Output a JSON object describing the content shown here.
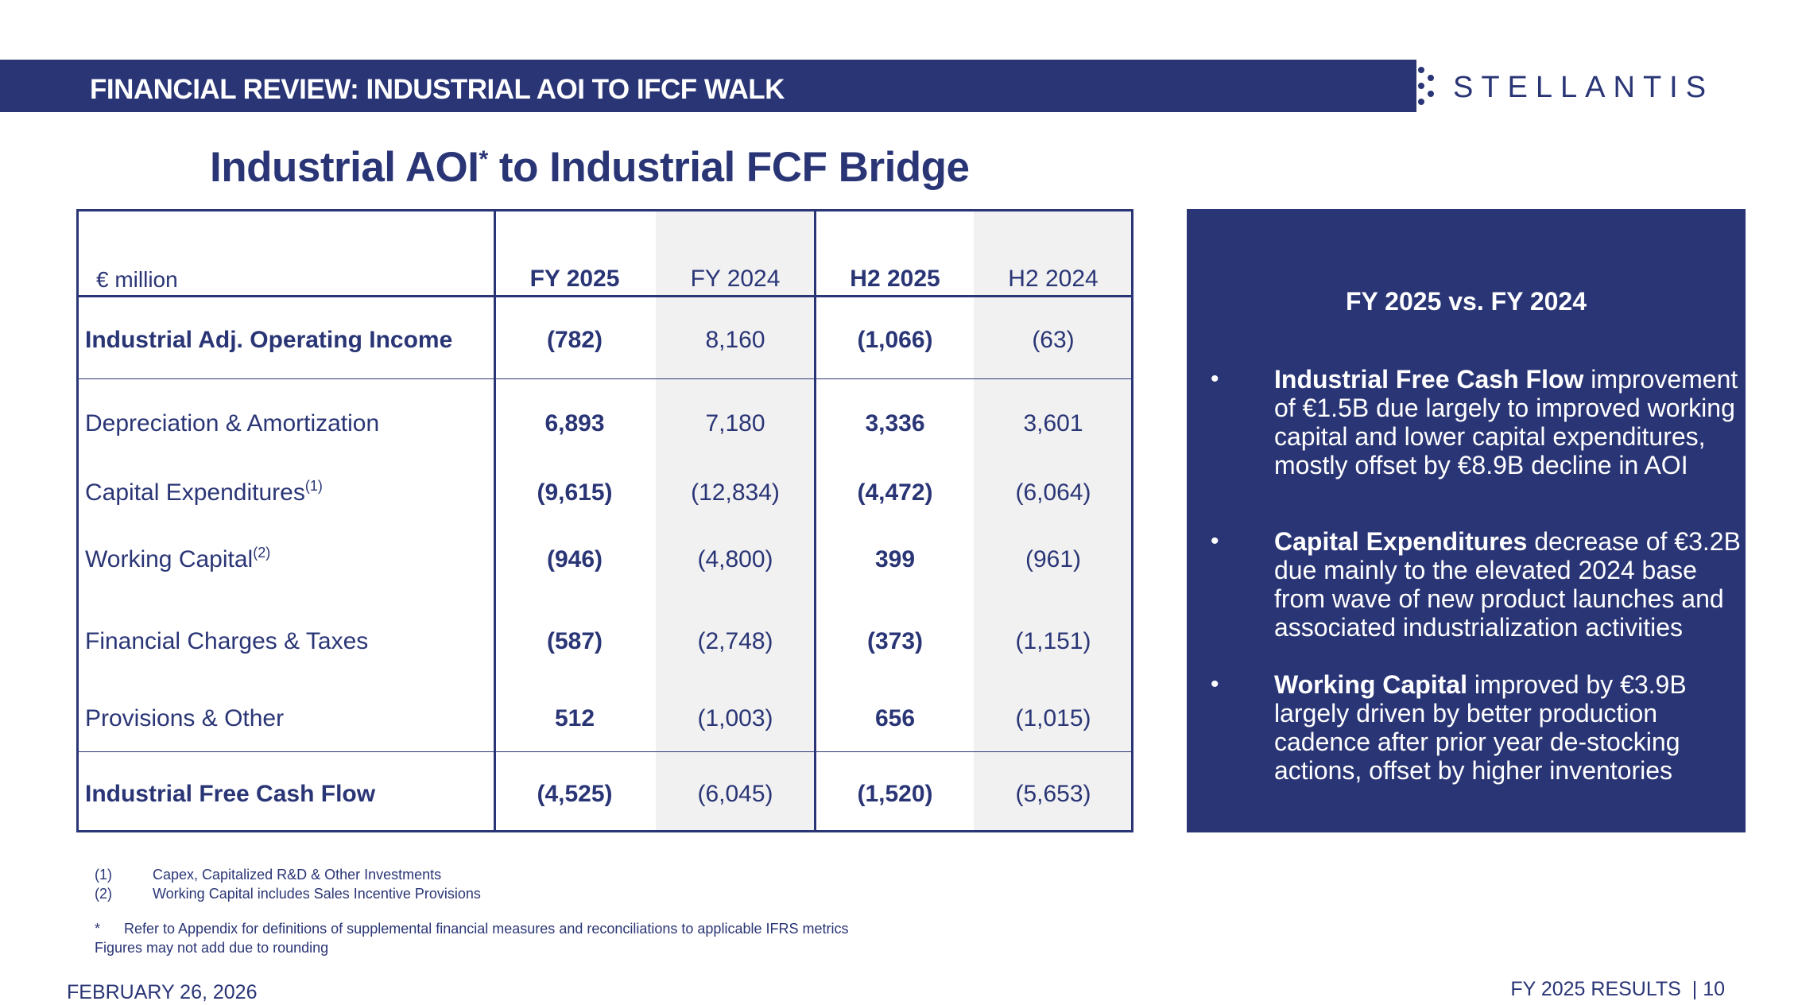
{
  "header": {
    "title": "FINANCIAL REVIEW: INDUSTRIAL AOI TO IFCF WALK",
    "logo_text": "STELLANTIS"
  },
  "main_title": {
    "text": "Industrial AOI",
    "sup": "*",
    "rest": " to Industrial FCF Bridge"
  },
  "table": {
    "unit_label": "€ million",
    "columns": [
      "FY 2025",
      "FY 2024",
      "H2 2025",
      "H2 2024"
    ],
    "rows": [
      {
        "label": "Industrial Adj. Operating Income",
        "sup": "",
        "values": [
          "(782)",
          "8,160",
          "(1,066)",
          "(63)"
        ]
      },
      {
        "label": "Depreciation & Amortization",
        "sup": "",
        "values": [
          "6,893",
          "7,180",
          "3,336",
          "3,601"
        ]
      },
      {
        "label": "Capital Expenditures",
        "sup": "(1)",
        "values": [
          "(9,615)",
          "(12,834)",
          "(4,472)",
          "(6,064)"
        ]
      },
      {
        "label": "Working Capital",
        "sup": "(2)",
        "values": [
          "(946)",
          "(4,800)",
          "399",
          "(961)"
        ]
      },
      {
        "label": "Financial Charges & Taxes",
        "sup": "",
        "values": [
          "(587)",
          "(2,748)",
          "(373)",
          "(1,151)"
        ]
      },
      {
        "label": "Provisions & Other",
        "sup": "",
        "values": [
          "512",
          "(1,003)",
          "656",
          "(1,015)"
        ]
      },
      {
        "label": "Industrial Free Cash Flow",
        "sup": "",
        "values": [
          "(4,525)",
          "(6,045)",
          "(1,520)",
          "(5,653)"
        ]
      }
    ]
  },
  "panel": {
    "title": "FY 2025 vs. FY 2024",
    "bullets": [
      {
        "bold": "Industrial Free Cash Flow",
        "text": " improvement of €1.5B due largely to improved working capital and lower capital expenditures, mostly offset by €8.9B decline in AOI"
      },
      {
        "bold": "Capital Expenditures",
        "text": " decrease of €3.2B due mainly to the elevated 2024 base from wave of new product launches and associated industrialization activities"
      },
      {
        "bold": "Working Capital",
        "text": " improved by €3.9B largely driven by better production cadence after prior year de-stocking actions, offset by higher inventories"
      }
    ]
  },
  "footnotes": {
    "n1_marker": "(1)",
    "n1_text": "Capex, Capitalized R&D & Other Investments",
    "n2_marker": "(2)",
    "n2_text": "Working Capital includes Sales Incentive Provisions",
    "star_marker": "*",
    "star_text": "Refer to Appendix for definitions of supplemental financial measures and reconciliations to applicable IFRS metrics",
    "rounding": "Figures may not add due to rounding"
  },
  "footer": {
    "date": "FEBRUARY 26, 2026",
    "results": "FY 2025 RESULTS",
    "page": "| 10"
  },
  "colors": {
    "brand_navy": "#2a3576",
    "shade_gray": "#f1f1f1"
  }
}
